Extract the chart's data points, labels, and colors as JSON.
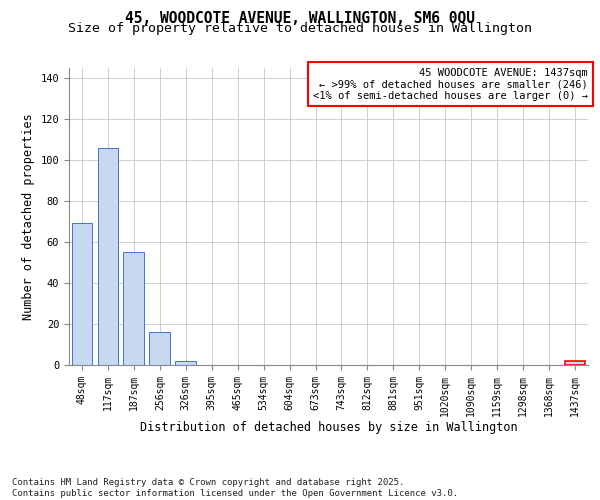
{
  "title": "45, WOODCOTE AVENUE, WALLINGTON, SM6 0QU",
  "subtitle": "Size of property relative to detached houses in Wallington",
  "xlabel": "Distribution of detached houses by size in Wallington",
  "ylabel": "Number of detached properties",
  "bar_values": [
    69,
    106,
    55,
    16,
    2,
    0,
    0,
    0,
    0,
    0,
    0,
    0,
    0,
    0,
    0,
    0,
    0,
    0,
    0,
    2
  ],
  "categories": [
    "48sqm",
    "117sqm",
    "187sqm",
    "256sqm",
    "326sqm",
    "395sqm",
    "465sqm",
    "534sqm",
    "604sqm",
    "673sqm",
    "743sqm",
    "812sqm",
    "881sqm",
    "951sqm",
    "1020sqm",
    "1090sqm",
    "1159sqm",
    "1298sqm",
    "1368sqm",
    "1437sqm"
  ],
  "bar_color": "#c6d9f1",
  "bar_edge_color": "#4472c4",
  "highlight_edge_color": "#ff0000",
  "annotation_text": "45 WOODCOTE AVENUE: 1437sqm\n← >99% of detached houses are smaller (246)\n<1% of semi-detached houses are larger (0) →",
  "ylim": [
    0,
    145
  ],
  "yticks": [
    0,
    20,
    40,
    60,
    80,
    100,
    120,
    140
  ],
  "footnote": "Contains HM Land Registry data © Crown copyright and database right 2025.\nContains public sector information licensed under the Open Government Licence v3.0.",
  "background_color": "#ffffff",
  "grid_color": "#c8c8c8",
  "title_fontsize": 10.5,
  "subtitle_fontsize": 9.5,
  "axis_label_fontsize": 8.5,
  "tick_fontsize": 7,
  "annotation_fontsize": 7.5,
  "footnote_fontsize": 6.5
}
